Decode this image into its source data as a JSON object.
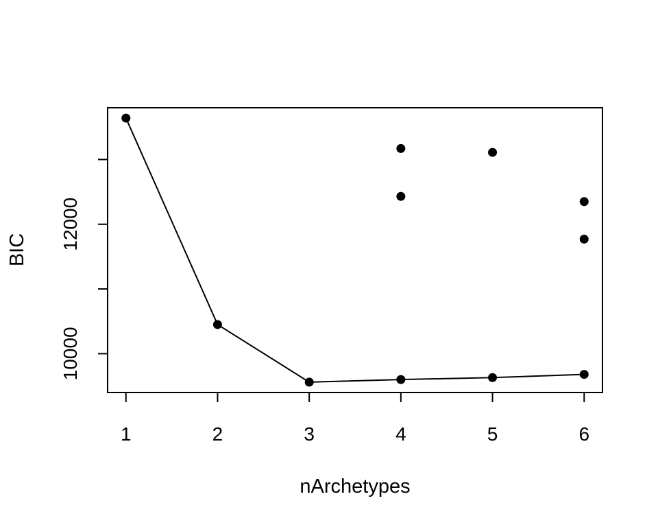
{
  "chart_data": {
    "type": "scatter",
    "title": "",
    "xlabel": "nArchetypes",
    "ylabel": "BIC",
    "xlim": [
      0.8,
      6.2
    ],
    "ylim": [
      9400,
      13800
    ],
    "x_ticks": [
      1,
      2,
      3,
      4,
      5,
      6
    ],
    "x_tick_labels": [
      "1",
      "2",
      "3",
      "4",
      "5",
      "6"
    ],
    "y_ticks": [
      10000,
      11000,
      12000,
      13000
    ],
    "y_tick_labels": [
      "10000",
      "",
      "12000",
      ""
    ],
    "grid": false,
    "legend": "none",
    "line_series": {
      "x": [
        1,
        2,
        3,
        4,
        5,
        6
      ],
      "y": [
        13640,
        10450,
        9560,
        9600,
        9630,
        9680
      ]
    },
    "points": [
      {
        "x": 1,
        "y": 13640
      },
      {
        "x": 2,
        "y": 10450
      },
      {
        "x": 3,
        "y": 9560
      },
      {
        "x": 4,
        "y": 9600
      },
      {
        "x": 4,
        "y": 12430
      },
      {
        "x": 4,
        "y": 13170
      },
      {
        "x": 5,
        "y": 9630
      },
      {
        "x": 5,
        "y": 13110
      },
      {
        "x": 6,
        "y": 9680
      },
      {
        "x": 6,
        "y": 11770
      },
      {
        "x": 6,
        "y": 12350
      }
    ],
    "colors": {
      "points": "#000000",
      "line": "#000000",
      "axes": "#000000"
    }
  }
}
